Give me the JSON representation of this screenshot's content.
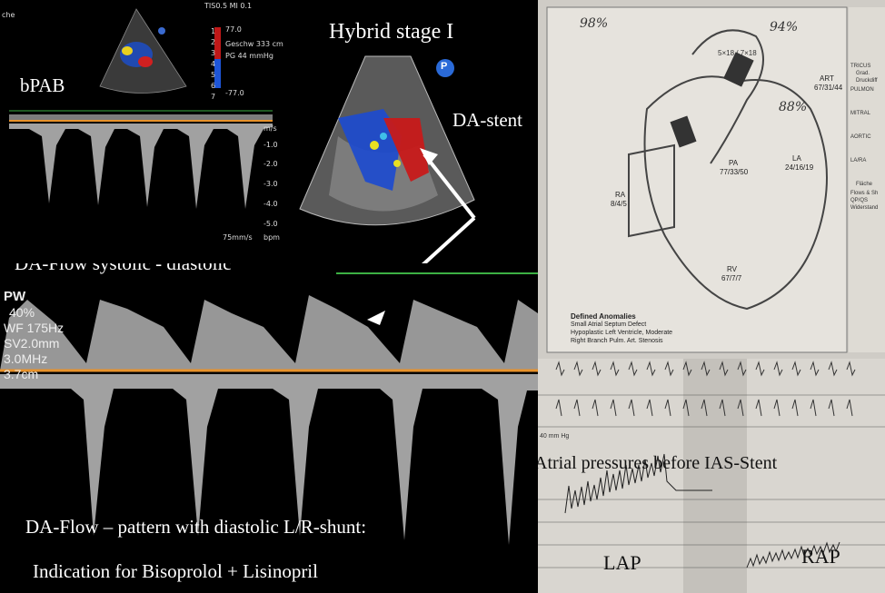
{
  "top_left_echo": {
    "corner_text": "che",
    "bpab_label": "bPAB",
    "header_settings": "TIS0.5  MI 0.1",
    "velocity_label": "Geschw 333 cm/s",
    "pg_label": "PG  44 mmHg",
    "scale_top": "77.0",
    "scale_bottom": "-77.0",
    "velocity_unit": "m/s",
    "velocity_ticks": [
      "-1.0",
      "-2.0",
      "-3.0",
      "-4.0",
      "-5.0"
    ],
    "sweep_speed": "75mm/s",
    "heart_rate_unit": "bpm",
    "depth_ticks": [
      "1",
      "2",
      "3",
      "4",
      "5",
      "6",
      "7"
    ]
  },
  "center_echo": {
    "title": "Hybrid stage I",
    "stent_label": "DA-stent",
    "probe_marker": "P"
  },
  "middle_label": "DA-Flow systolic - diastolic",
  "da_flow_settings": [
    "PW",
    "40%",
    "WF 175Hz",
    "SV2.0mm",
    "3.0MHz",
    "3.7cm"
  ],
  "bottom_captions": {
    "pattern": "DA-Flow – pattern with diastolic L/R-shunt:",
    "indication": "Indication for Bisoprolol + Lisinopril"
  },
  "diagram": {
    "annotations": [
      "98%",
      "94%",
      "88%"
    ],
    "chambers": [
      {
        "name": "PA",
        "values": "77/33/50"
      },
      {
        "name": "LA",
        "values": "24/16/19"
      },
      {
        "name": "RA",
        "values": "8/4/5"
      },
      {
        "name": "RV",
        "values": "67/7/7"
      },
      {
        "name": "ART",
        "values": "67/31/44"
      }
    ],
    "stent_note": "5×18 / 7×18",
    "defined_anomalies_title": "Defined Anomalies",
    "anomalies": [
      "Small Atrial Septum Defect",
      "Hypoplastic Left Ventricle, Moderate",
      "Right Branch Pulm. Art. Stenosis"
    ],
    "sidebar": [
      "Grad.",
      "Druckdiff",
      "TRICUS",
      "PULMON",
      "MITRAL",
      "AORTIC",
      "LA/RA",
      "Fläche",
      "Flows & Sh",
      "QP/QS",
      "Widerstand"
    ]
  },
  "ecg": {
    "caption": "Atrial pressures before IAS-Stent",
    "lap_label": "LAP",
    "rap_label": "RAP",
    "scale_text": "40 mm Hg"
  }
}
